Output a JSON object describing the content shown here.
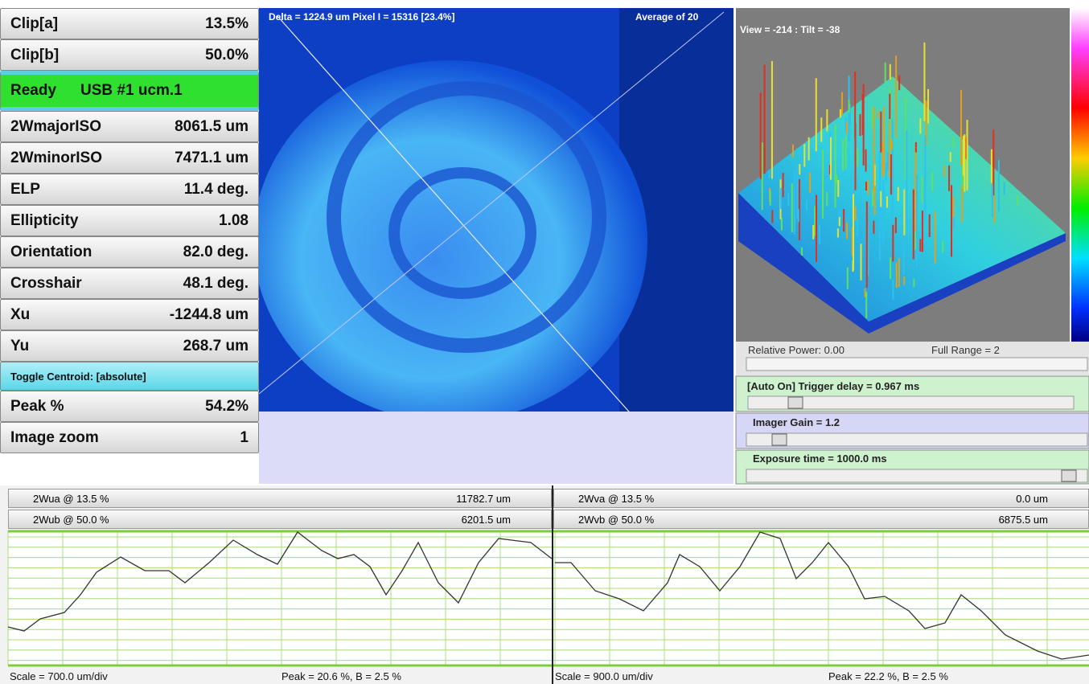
{
  "left_panel": {
    "top_rows": [
      {
        "label": "Clip[a]",
        "value": "13.5%"
      },
      {
        "label": "Clip[b]",
        "value": "50.0%"
      }
    ],
    "status": {
      "label": "Ready",
      "device": "USB #1 ucm.1"
    },
    "measurements": [
      {
        "label": "2WmajorISO",
        "value": "8061.5 um"
      },
      {
        "label": "2WminorISO",
        "value": "7471.1 um"
      },
      {
        "label": "ELP",
        "value": "11.4 deg."
      },
      {
        "label": "Ellipticity",
        "value": "1.08"
      },
      {
        "label": "Orientation",
        "value": "82.0 deg."
      },
      {
        "label": "Crosshair",
        "value": "48.1 deg."
      },
      {
        "label": "Xu",
        "value": "-1244.8 um"
      },
      {
        "label": "Yu",
        "value": "268.7 um"
      }
    ],
    "toggle": "Toggle Centroid:  [absolute]",
    "bottom_rows": [
      {
        "label": "Peak %",
        "value": "54.2%"
      },
      {
        "label": "Image zoom",
        "value": "1"
      }
    ]
  },
  "image_view": {
    "info": "Delta = 1224.9 um Pixel I = 15316 [23.4%]",
    "average": "Average of 20"
  },
  "view_3d": {
    "info": "View = -214 : Tilt = -38"
  },
  "power_bar": {
    "relative_power": "Relative Power: 0.00",
    "full_range": "Full Range = 2"
  },
  "controls": [
    "[Auto On] Trigger delay = 0.967 ms",
    "Imager Gain = 1.2",
    "Exposure time = 1000.0 ms"
  ],
  "profiles": [
    {
      "rows": [
        {
          "label": "2Wua @ 13.5 %",
          "value": "11782.7 um"
        },
        {
          "label": "2Wub @ 50.0 %",
          "value": "6201.5 um"
        }
      ],
      "scale": "Scale = 700.0 um/div",
      "peak": "Peak = 20.6 %,  B = 2.5 %"
    },
    {
      "rows": [
        {
          "label": "2Wva @ 13.5 %",
          "value": "0.0 um"
        },
        {
          "label": "2Wvb @ 50.0 %",
          "value": "6875.5 um"
        }
      ],
      "scale": "Scale = 900.0 um/div",
      "peak": "Peak = 22.2 %,  B = 2.5 %"
    }
  ]
}
